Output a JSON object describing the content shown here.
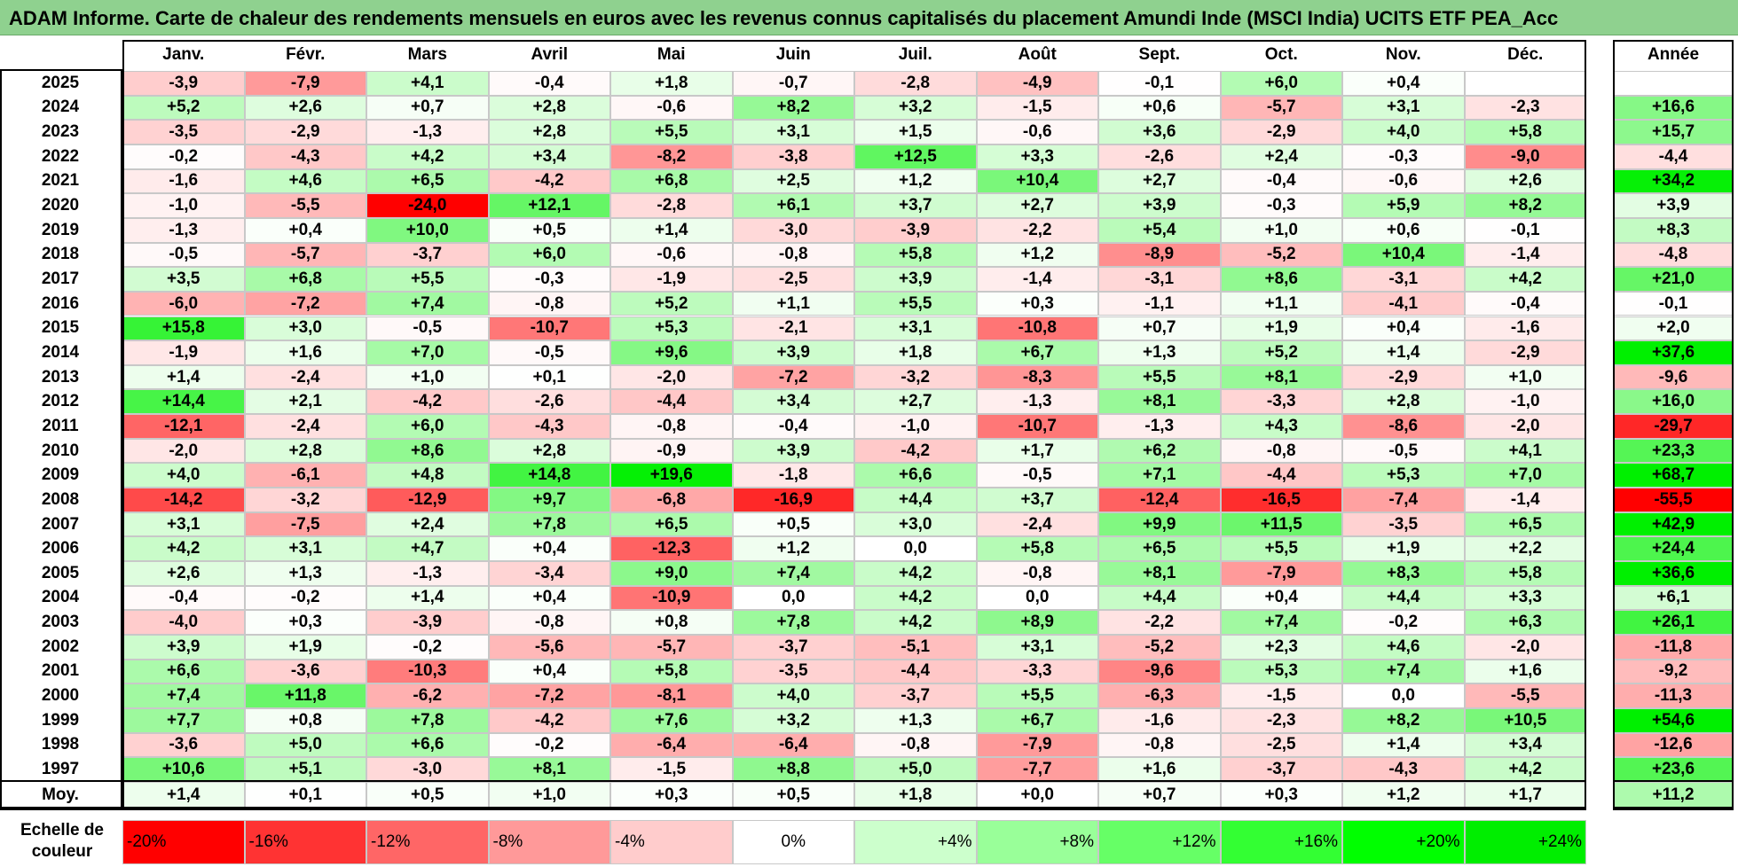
{
  "title": "ADAM Informe. Carte de chaleur des rendements mensuels en euros avec les revenus connus capitalisés du placement Amundi Inde (MSCI India) UCITS ETF PEA_Acc",
  "chart_data": {
    "type": "heatmap",
    "title": "ADAM Informe. Carte de chaleur des rendements mensuels en euros avec les revenus connus capitalisés du placement Amundi Inde (MSCI India) UCITS ETF PEA_Acc",
    "months": [
      "Janv.",
      "Févr.",
      "Mars",
      "Avril",
      "Mai",
      "Juin",
      "Juil.",
      "Août",
      "Sept.",
      "Oct.",
      "Nov.",
      "Déc."
    ],
    "annual_label": "Année",
    "rows": [
      {
        "year": "2025",
        "months": [
          "-3,9",
          "-7,9",
          "+4,1",
          "-0,4",
          "+1,8",
          "-0,7",
          "-2,8",
          "-4,9",
          "-0,1",
          "+6,0",
          "+0,4",
          ""
        ],
        "annual": ""
      },
      {
        "year": "2024",
        "months": [
          "+5,2",
          "+2,6",
          "+0,7",
          "+2,8",
          "-0,6",
          "+8,2",
          "+3,2",
          "-1,5",
          "+0,6",
          "-5,7",
          "+3,1",
          "-2,3"
        ],
        "annual": "+16,6"
      },
      {
        "year": "2023",
        "months": [
          "-3,5",
          "-2,9",
          "-1,3",
          "+2,8",
          "+5,5",
          "+3,1",
          "+1,5",
          "-0,6",
          "+3,6",
          "-2,9",
          "+4,0",
          "+5,8"
        ],
        "annual": "+15,7"
      },
      {
        "year": "2022",
        "months": [
          "-0,2",
          "-4,3",
          "+4,2",
          "+3,4",
          "-8,2",
          "-3,8",
          "+12,5",
          "+3,3",
          "-2,6",
          "+2,4",
          "-0,3",
          "-9,0"
        ],
        "annual": "-4,4"
      },
      {
        "year": "2021",
        "months": [
          "-1,6",
          "+4,6",
          "+6,5",
          "-4,2",
          "+6,8",
          "+2,5",
          "+1,2",
          "+10,4",
          "+2,7",
          "-0,4",
          "-0,6",
          "+2,6"
        ],
        "annual": "+34,2"
      },
      {
        "year": "2020",
        "months": [
          "-1,0",
          "-5,5",
          "-24,0",
          "+12,1",
          "-2,8",
          "+6,1",
          "+3,7",
          "+2,7",
          "+3,9",
          "-0,3",
          "+5,9",
          "+8,2"
        ],
        "annual": "+3,9"
      },
      {
        "year": "2019",
        "months": [
          "-1,3",
          "+0,4",
          "+10,0",
          "+0,5",
          "+1,4",
          "-3,0",
          "-3,9",
          "-2,2",
          "+5,4",
          "+1,0",
          "+0,6",
          "-0,1"
        ],
        "annual": "+8,3"
      },
      {
        "year": "2018",
        "months": [
          "-0,5",
          "-5,7",
          "-3,7",
          "+6,0",
          "-0,6",
          "-0,8",
          "+5,8",
          "+1,2",
          "-8,9",
          "-5,2",
          "+10,4",
          "-1,4"
        ],
        "annual": "-4,8"
      },
      {
        "year": "2017",
        "months": [
          "+3,5",
          "+6,8",
          "+5,5",
          "-0,3",
          "-1,9",
          "-2,5",
          "+3,9",
          "-1,4",
          "-3,1",
          "+8,6",
          "-3,1",
          "+4,2"
        ],
        "annual": "+21,0"
      },
      {
        "year": "2016",
        "months": [
          "-6,0",
          "-7,2",
          "+7,4",
          "-0,8",
          "+5,2",
          "+1,1",
          "+5,5",
          "+0,3",
          "-1,1",
          "+1,1",
          "-4,1",
          "-0,4"
        ],
        "annual": "-0,1"
      },
      {
        "year": "2015",
        "months": [
          "+15,8",
          "+3,0",
          "-0,5",
          "-10,7",
          "+5,3",
          "-2,1",
          "+3,1",
          "-10,8",
          "+0,7",
          "+1,9",
          "+0,4",
          "-1,6"
        ],
        "annual": "+2,0"
      },
      {
        "year": "2014",
        "months": [
          "-1,9",
          "+1,6",
          "+7,0",
          "-0,5",
          "+9,6",
          "+3,9",
          "+1,8",
          "+6,7",
          "+1,3",
          "+5,2",
          "+1,4",
          "-2,9"
        ],
        "annual": "+37,6"
      },
      {
        "year": "2013",
        "months": [
          "+1,4",
          "-2,4",
          "+1,0",
          "+0,1",
          "-2,0",
          "-7,2",
          "-3,2",
          "-8,3",
          "+5,5",
          "+8,1",
          "-2,9",
          "+1,0"
        ],
        "annual": "-9,6"
      },
      {
        "year": "2012",
        "months": [
          "+14,4",
          "+2,1",
          "-4,2",
          "-2,6",
          "-4,4",
          "+3,4",
          "+2,7",
          "-1,3",
          "+8,1",
          "-3,3",
          "+2,8",
          "-1,0"
        ],
        "annual": "+16,0"
      },
      {
        "year": "2011",
        "months": [
          "-12,1",
          "-2,4",
          "+6,0",
          "-4,3",
          "-0,8",
          "-0,4",
          "-1,0",
          "-10,7",
          "-1,3",
          "+4,3",
          "-8,6",
          "-2,0"
        ],
        "annual": "-29,7"
      },
      {
        "year": "2010",
        "months": [
          "-2,0",
          "+2,8",
          "+8,6",
          "+2,8",
          "-0,9",
          "+3,9",
          "-4,2",
          "+1,7",
          "+6,2",
          "-0,8",
          "-0,5",
          "+4,1"
        ],
        "annual": "+23,3"
      },
      {
        "year": "2009",
        "months": [
          "+4,0",
          "-6,1",
          "+4,8",
          "+14,8",
          "+19,6",
          "-1,8",
          "+6,6",
          "-0,5",
          "+7,1",
          "-4,4",
          "+5,3",
          "+7,0"
        ],
        "annual": "+68,7"
      },
      {
        "year": "2008",
        "months": [
          "-14,2",
          "-3,2",
          "-12,9",
          "+9,7",
          "-6,8",
          "-16,9",
          "+4,4",
          "+3,7",
          "-12,4",
          "-16,5",
          "-7,4",
          "-1,4"
        ],
        "annual": "-55,5"
      },
      {
        "year": "2007",
        "months": [
          "+3,1",
          "-7,5",
          "+2,4",
          "+7,8",
          "+6,5",
          "+0,5",
          "+3,0",
          "-2,4",
          "+9,9",
          "+11,5",
          "-3,5",
          "+6,5"
        ],
        "annual": "+42,9"
      },
      {
        "year": "2006",
        "months": [
          "+4,2",
          "+3,1",
          "+4,7",
          "+0,4",
          "-12,3",
          "+1,2",
          "0,0",
          "+5,8",
          "+6,5",
          "+5,5",
          "+1,9",
          "+2,2"
        ],
        "annual": "+24,4"
      },
      {
        "year": "2005",
        "months": [
          "+2,6",
          "+1,3",
          "-1,3",
          "-3,4",
          "+9,0",
          "+7,4",
          "+4,2",
          "-0,8",
          "+8,1",
          "-7,9",
          "+8,3",
          "+5,8"
        ],
        "annual": "+36,6"
      },
      {
        "year": "2004",
        "months": [
          "-0,4",
          "-0,2",
          "+1,4",
          "+0,4",
          "-10,9",
          "0,0",
          "+4,2",
          "0,0",
          "+4,4",
          "+0,4",
          "+4,4",
          "+3,3"
        ],
        "annual": "+6,1"
      },
      {
        "year": "2003",
        "months": [
          "-4,0",
          "+0,3",
          "-3,9",
          "-0,8",
          "+0,8",
          "+7,8",
          "+4,2",
          "+8,9",
          "-2,2",
          "+7,4",
          "-0,2",
          "+6,3"
        ],
        "annual": "+26,1"
      },
      {
        "year": "2002",
        "months": [
          "+3,9",
          "+1,9",
          "-0,2",
          "-5,6",
          "-5,7",
          "-3,7",
          "-5,1",
          "+3,1",
          "-5,2",
          "+2,3",
          "+4,6",
          "-2,0"
        ],
        "annual": "-11,8"
      },
      {
        "year": "2001",
        "months": [
          "+6,6",
          "-3,6",
          "-10,3",
          "+0,4",
          "+5,8",
          "-3,5",
          "-4,4",
          "-3,3",
          "-9,6",
          "+5,3",
          "+7,4",
          "+1,6"
        ],
        "annual": "-9,2"
      },
      {
        "year": "2000",
        "months": [
          "+7,4",
          "+11,8",
          "-6,2",
          "-7,2",
          "-8,1",
          "+4,0",
          "-3,7",
          "+5,5",
          "-6,3",
          "-1,5",
          "0,0",
          "-5,5"
        ],
        "annual": "-11,3"
      },
      {
        "year": "1999",
        "months": [
          "+7,7",
          "+0,8",
          "+7,8",
          "-4,2",
          "+7,6",
          "+3,2",
          "+1,3",
          "+6,7",
          "-1,6",
          "-2,3",
          "+8,2",
          "+10,5"
        ],
        "annual": "+54,6"
      },
      {
        "year": "1998",
        "months": [
          "-3,6",
          "+5,0",
          "+6,6",
          "-0,2",
          "-6,4",
          "-6,4",
          "-0,8",
          "-7,9",
          "-0,8",
          "-2,5",
          "+1,4",
          "+3,4"
        ],
        "annual": "-12,6"
      },
      {
        "year": "1997",
        "months": [
          "+10,6",
          "+5,1",
          "-3,0",
          "+8,1",
          "-1,5",
          "+8,8",
          "+5,0",
          "-7,7",
          "+1,6",
          "-3,7",
          "-4,3",
          "+4,2"
        ],
        "annual": "+23,6"
      }
    ],
    "average": {
      "label": "Moy.",
      "months": [
        "+1,4",
        "+0,1",
        "+0,5",
        "+1,0",
        "+0,3",
        "+0,5",
        "+1,8",
        "+0,0",
        "+0,7",
        "+0,3",
        "+1,2",
        "+1,7"
      ],
      "annual": "+11,2"
    },
    "color_scale": {
      "label_line1": "Echelle de",
      "label_line2": "couleur",
      "stops": [
        {
          "label": "-20%",
          "value": -20,
          "color": "#ff0000"
        },
        {
          "label": "-16%",
          "value": -16,
          "color": "#ff3333"
        },
        {
          "label": "-12%",
          "value": -12,
          "color": "#ff6666"
        },
        {
          "label": "-8%",
          "value": -8,
          "color": "#ff9999"
        },
        {
          "label": "-4%",
          "value": -4,
          "color": "#ffcccc"
        },
        {
          "label": "0%",
          "value": 0,
          "color": "#ffffff"
        },
        {
          "label": "+4%",
          "value": 4,
          "color": "#ccffcc"
        },
        {
          "label": "+8%",
          "value": 8,
          "color": "#99ff99"
        },
        {
          "label": "+12%",
          "value": 12,
          "color": "#66ff66"
        },
        {
          "label": "+16%",
          "value": 16,
          "color": "#33ff33"
        },
        {
          "label": "+20%",
          "value": 20,
          "color": "#00ff00"
        },
        {
          "label": "+24%",
          "value": 24,
          "color": "#00ee00"
        }
      ]
    },
    "colors": {
      "title_bar": "#8fd18f",
      "negative": "#ff0000",
      "positive": "#00ff00",
      "neutral": "#ffffff"
    }
  }
}
